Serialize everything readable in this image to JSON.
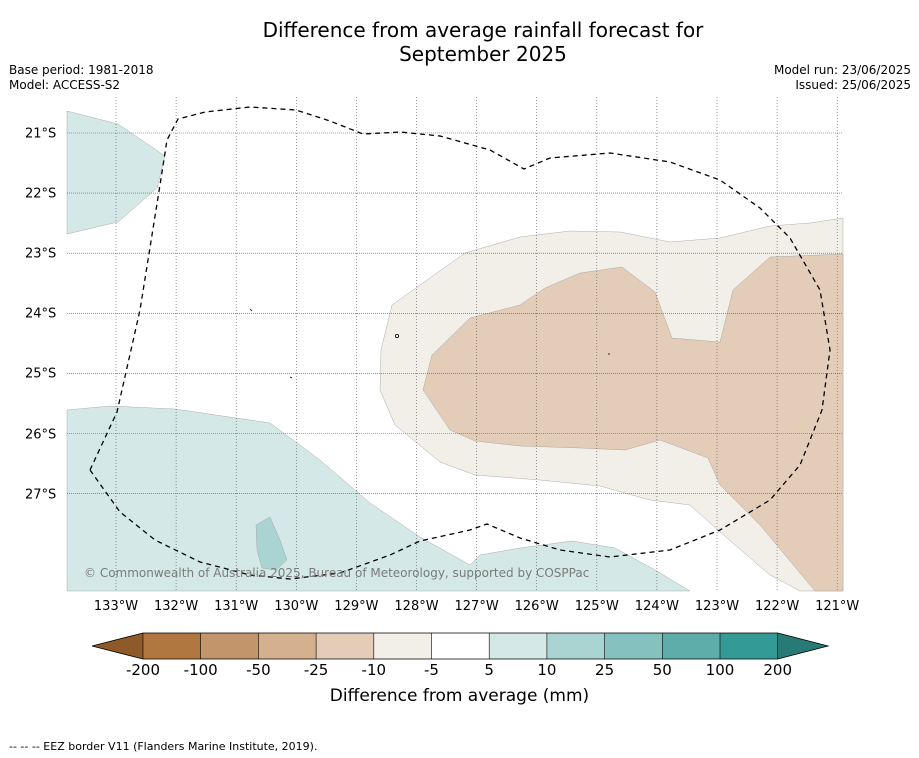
{
  "title_line1": "Difference from average rainfall forecast for",
  "title_line2": "September 2025",
  "base_period": "Base period: 1981-2018",
  "model": "Model: ACCESS-S2",
  "model_run": "Model run: 23/06/2025",
  "issued": "Issued: 25/06/2025",
  "copyright": "© Commonwealth of Australia 2025, Bureau of Meteorology, supported by COSPPac",
  "footer": "--  --  -- EEZ border V11 (Flanders Marine Institute, 2019).",
  "longitude_labels": [
    "133°W",
    "132°W",
    "131°W",
    "130°W",
    "129°W",
    "128°W",
    "127°W",
    "126°W",
    "125°W",
    "124°W",
    "123°W",
    "122°W",
    "121°W"
  ],
  "latitude_labels": [
    "21°S",
    "22°S",
    "23°S",
    "24°S",
    "25°S",
    "26°S",
    "27°S"
  ],
  "colorbar": {
    "title": "Difference from average (mm)",
    "ticks": [
      "-200",
      "-100",
      "-50",
      "-25",
      "-10",
      "-5",
      "5",
      "10",
      "25",
      "50",
      "100",
      "200"
    ],
    "colors": {
      "below_min": "#8f5a2a",
      "-200_-100": "#b07840",
      "-100_-50": "#c3956b",
      "-50_-25": "#d4b08f",
      "-25_-10": "#e3cdb9",
      "-10_-5": "#f2eee8",
      "-5_5": "#ffffff",
      "5_10": "#d4e9e7",
      "10_25": "#aad4d2",
      "25_50": "#84c1bf",
      "50_100": "#5eadaa",
      "100_200": "#339a95",
      "above_max": "#287a76"
    }
  },
  "map_colors": {
    "dry_light": "#f2eee8",
    "dry_medium": "#e3cdb9",
    "wet_light": "#d4e9e7",
    "wet_medium": "#aad4d2"
  }
}
